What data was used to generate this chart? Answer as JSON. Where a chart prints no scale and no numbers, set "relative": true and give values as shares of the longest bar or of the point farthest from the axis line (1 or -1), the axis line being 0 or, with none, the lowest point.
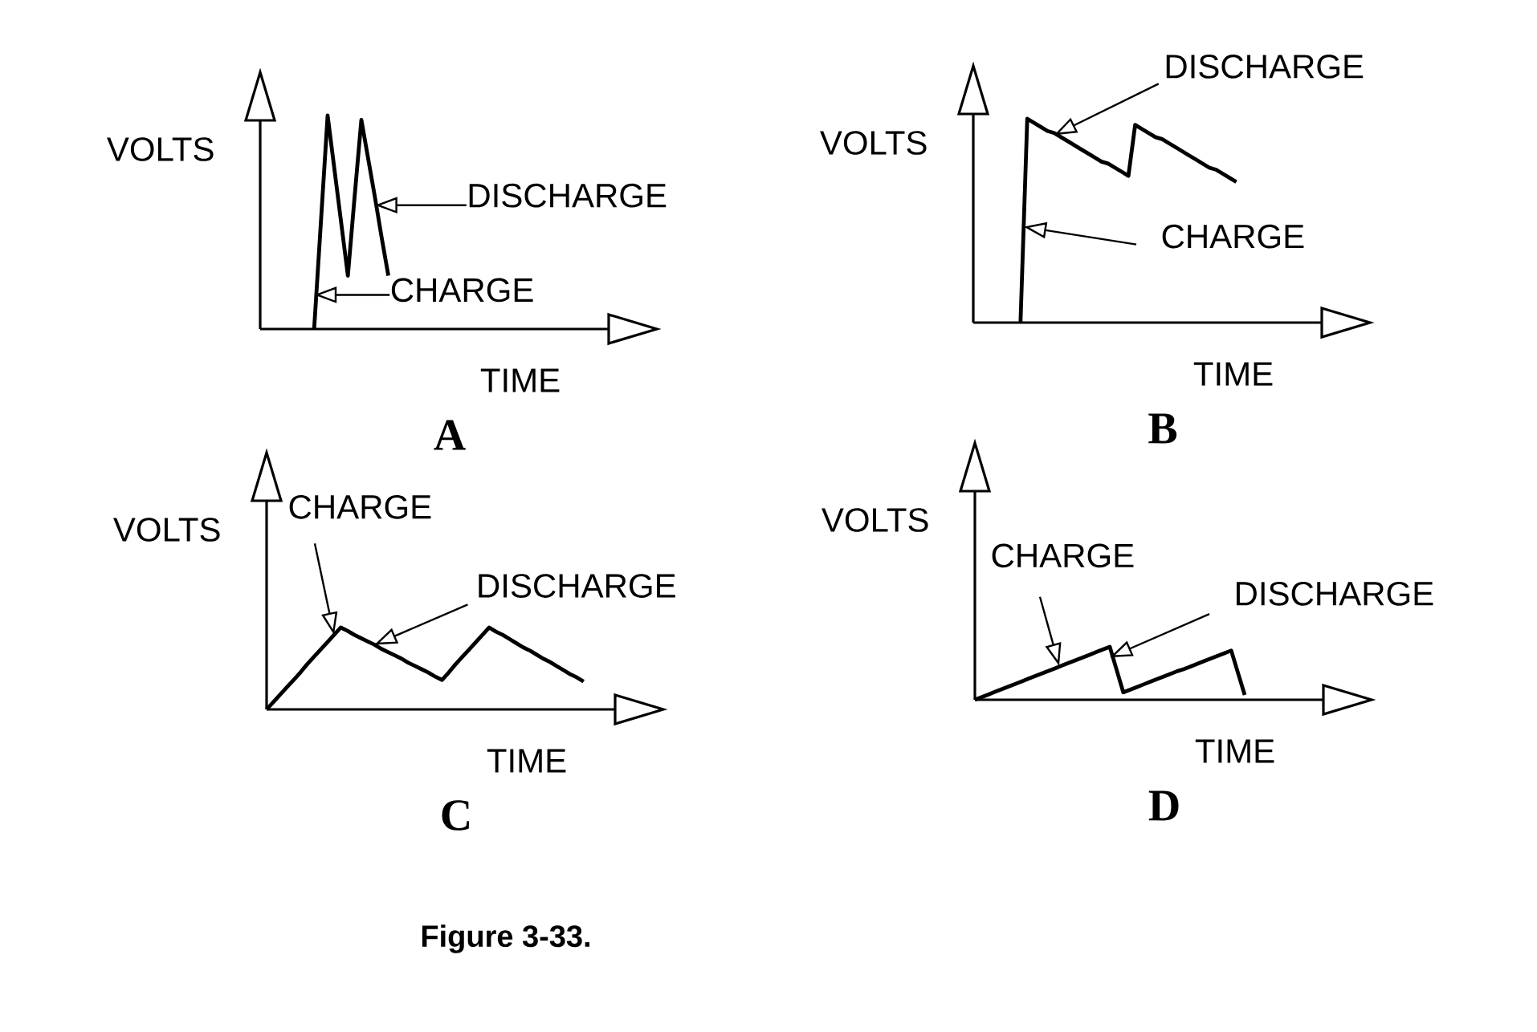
{
  "chart_data": [
    {
      "type": "line",
      "title": "A",
      "xlabel": "TIME",
      "ylabel": "VOLTS",
      "relative": true,
      "categories": [
        null,
        null,
        null,
        null,
        null,
        null,
        null,
        null,
        null,
        null,
        null,
        null,
        null,
        null,
        null,
        null,
        null,
        null,
        null,
        null,
        null,
        null,
        null,
        null,
        null,
        null,
        null,
        null,
        null,
        null,
        null,
        null,
        null,
        null,
        null,
        null,
        null,
        null,
        null,
        null,
        null,
        null,
        null,
        null,
        null,
        null,
        null,
        null,
        null,
        null,
        null
      ],
      "series": [
        {
          "color": "#000000",
          "values": [
            null,
            null,
            null,
            null,
            null,
            null,
            null,
            null,
            0,
            0.5,
            1,
            0.75,
            0.5,
            0.25,
            0.62,
            0.98,
            0.8,
            0.62,
            0.43,
            0.25,
            null,
            null,
            null,
            null,
            null,
            null,
            null,
            null,
            null,
            null,
            null,
            null,
            null,
            null,
            null,
            null,
            null,
            null,
            null,
            null,
            null,
            null,
            null,
            null,
            null,
            null,
            null,
            null,
            null,
            null,
            null
          ]
        }
      ],
      "annotations": [
        "DISCHARGE",
        "CHARGE"
      ]
    },
    {
      "type": "line",
      "title": "B",
      "xlabel": "TIME",
      "ylabel": "VOLTS",
      "relative": true,
      "categories": [
        null,
        null,
        null,
        null,
        null,
        null,
        null,
        null,
        null,
        null,
        null,
        null,
        null,
        null,
        null,
        null,
        null,
        null,
        null,
        null,
        null,
        null,
        null,
        null,
        null,
        null,
        null,
        null,
        null,
        null,
        null,
        null,
        null,
        null,
        null,
        null,
        null,
        null,
        null,
        null,
        null,
        null,
        null,
        null,
        null,
        null,
        null,
        null,
        null,
        null,
        null
      ],
      "series": [
        {
          "color": "#000000",
          "values": [
            null,
            null,
            null,
            null,
            null,
            null,
            null,
            0,
            1,
            0.98,
            0.96,
            0.94,
            0.93,
            0.91,
            0.89,
            0.87,
            0.85,
            0.83,
            0.81,
            0.79,
            0.78,
            0.76,
            0.74,
            0.72,
            0.97,
            0.95,
            0.93,
            0.91,
            0.9,
            0.88,
            0.86,
            0.84,
            0.82,
            0.8,
            0.78,
            0.76,
            0.75,
            0.73,
            0.71,
            0.69,
            null,
            null,
            null,
            null,
            null,
            null,
            null,
            null,
            null,
            null,
            null
          ]
        }
      ],
      "annotations": [
        "DISCHARGE",
        "CHARGE"
      ]
    },
    {
      "type": "line",
      "title": "C",
      "xlabel": "TIME",
      "ylabel": "VOLTS",
      "relative": true,
      "categories": [
        null,
        null,
        null,
        null,
        null,
        null,
        null,
        null,
        null,
        null,
        null,
        null,
        null,
        null,
        null,
        null,
        null,
        null,
        null,
        null,
        null,
        null,
        null,
        null,
        null,
        null,
        null,
        null,
        null,
        null,
        null,
        null,
        null,
        null,
        null,
        null,
        null,
        null,
        null,
        null,
        null,
        null,
        null,
        null,
        null,
        null,
        null,
        null,
        null,
        null,
        null
      ],
      "series": [
        {
          "color": "#000000",
          "values": [
            0,
            0.09,
            0.18,
            0.27,
            0.36,
            0.45,
            0.55,
            0.64,
            0.73,
            0.82,
            0.91,
            1,
            0.96,
            0.91,
            0.87,
            0.83,
            0.79,
            0.74,
            0.7,
            0.66,
            0.62,
            0.57,
            0.53,
            0.49,
            0.45,
            0.4,
            0.36,
            0.45,
            0.55,
            0.64,
            0.73,
            0.82,
            0.91,
            1,
            0.95,
            0.91,
            0.86,
            0.81,
            0.76,
            0.72,
            0.67,
            0.62,
            0.58,
            0.53,
            0.48,
            0.43,
            0.39,
            0.34,
            null,
            null,
            null
          ]
        }
      ],
      "annotations": [
        "CHARGE",
        "DISCHARGE"
      ]
    },
    {
      "type": "line",
      "title": "D",
      "xlabel": "TIME",
      "ylabel": "VOLTS",
      "relative": true,
      "categories": [
        null,
        null,
        null,
        null,
        null,
        null,
        null,
        null,
        null,
        null,
        null,
        null,
        null,
        null,
        null,
        null,
        null,
        null,
        null,
        null,
        null,
        null,
        null,
        null,
        null,
        null,
        null,
        null,
        null,
        null,
        null,
        null,
        null,
        null,
        null,
        null,
        null,
        null,
        null,
        null,
        null,
        null,
        null,
        null,
        null,
        null,
        null,
        null,
        null,
        null,
        null
      ],
      "series": [
        {
          "color": "#000000",
          "values": [
            0,
            0.05,
            0.1,
            0.15,
            0.2,
            0.25,
            0.3,
            0.35,
            0.4,
            0.45,
            0.5,
            0.55,
            0.6,
            0.65,
            0.7,
            0.75,
            0.8,
            0.85,
            0.9,
            0.95,
            1,
            0.57,
            0.14,
            0.19,
            0.24,
            0.29,
            0.34,
            0.39,
            0.44,
            0.49,
            0.54,
            0.58,
            0.63,
            0.68,
            0.73,
            0.78,
            0.83,
            0.88,
            0.93,
            0.51,
            0.09,
            null,
            null,
            null,
            null,
            null,
            null,
            null,
            null,
            null,
            null
          ]
        }
      ],
      "annotations": [
        "CHARGE",
        "DISCHARGE",
        "Figure 3-33."
      ]
    }
  ]
}
